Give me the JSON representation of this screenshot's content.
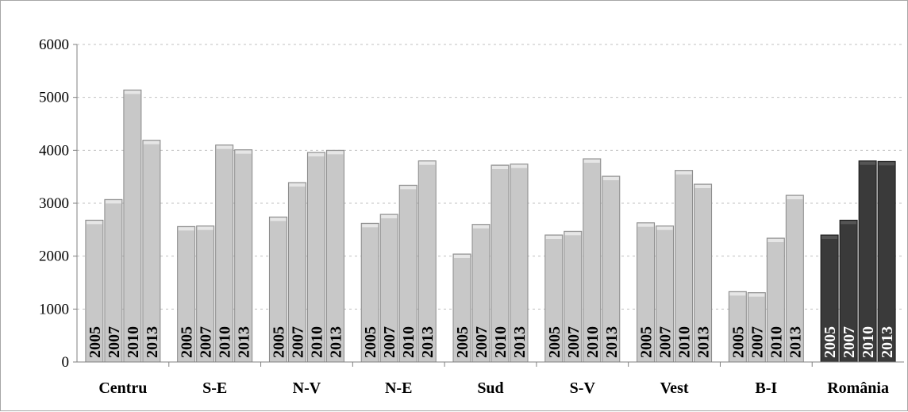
{
  "chart_data": {
    "type": "bar",
    "categories": [
      "Centru",
      "S-E",
      "N-V",
      "N-E",
      "Sud",
      "S-V",
      "Vest",
      "B-I",
      "România"
    ],
    "series": [
      {
        "name": "2005",
        "values": [
          2680,
          2560,
          2740,
          2620,
          2040,
          2400,
          2630,
          1330,
          2400
        ]
      },
      {
        "name": "2007",
        "values": [
          3070,
          2570,
          3390,
          2790,
          2600,
          2470,
          2570,
          1310,
          2680
        ]
      },
      {
        "name": "2010",
        "values": [
          5140,
          4100,
          3960,
          3340,
          3720,
          3840,
          3620,
          2340,
          3800
        ]
      },
      {
        "name": "2013",
        "values": [
          4190,
          4010,
          4000,
          3800,
          3740,
          3510,
          3360,
          3150,
          3790
        ]
      }
    ],
    "ylim": [
      0,
      6000
    ],
    "yticks": [
      0,
      1000,
      2000,
      3000,
      4000,
      5000,
      6000
    ],
    "grid": true,
    "bar_color": "#c8c8c8",
    "highlight_bar_color": "#3a3a3a",
    "highlight_category": "România",
    "title": "",
    "xlabel": "",
    "ylabel": ""
  }
}
